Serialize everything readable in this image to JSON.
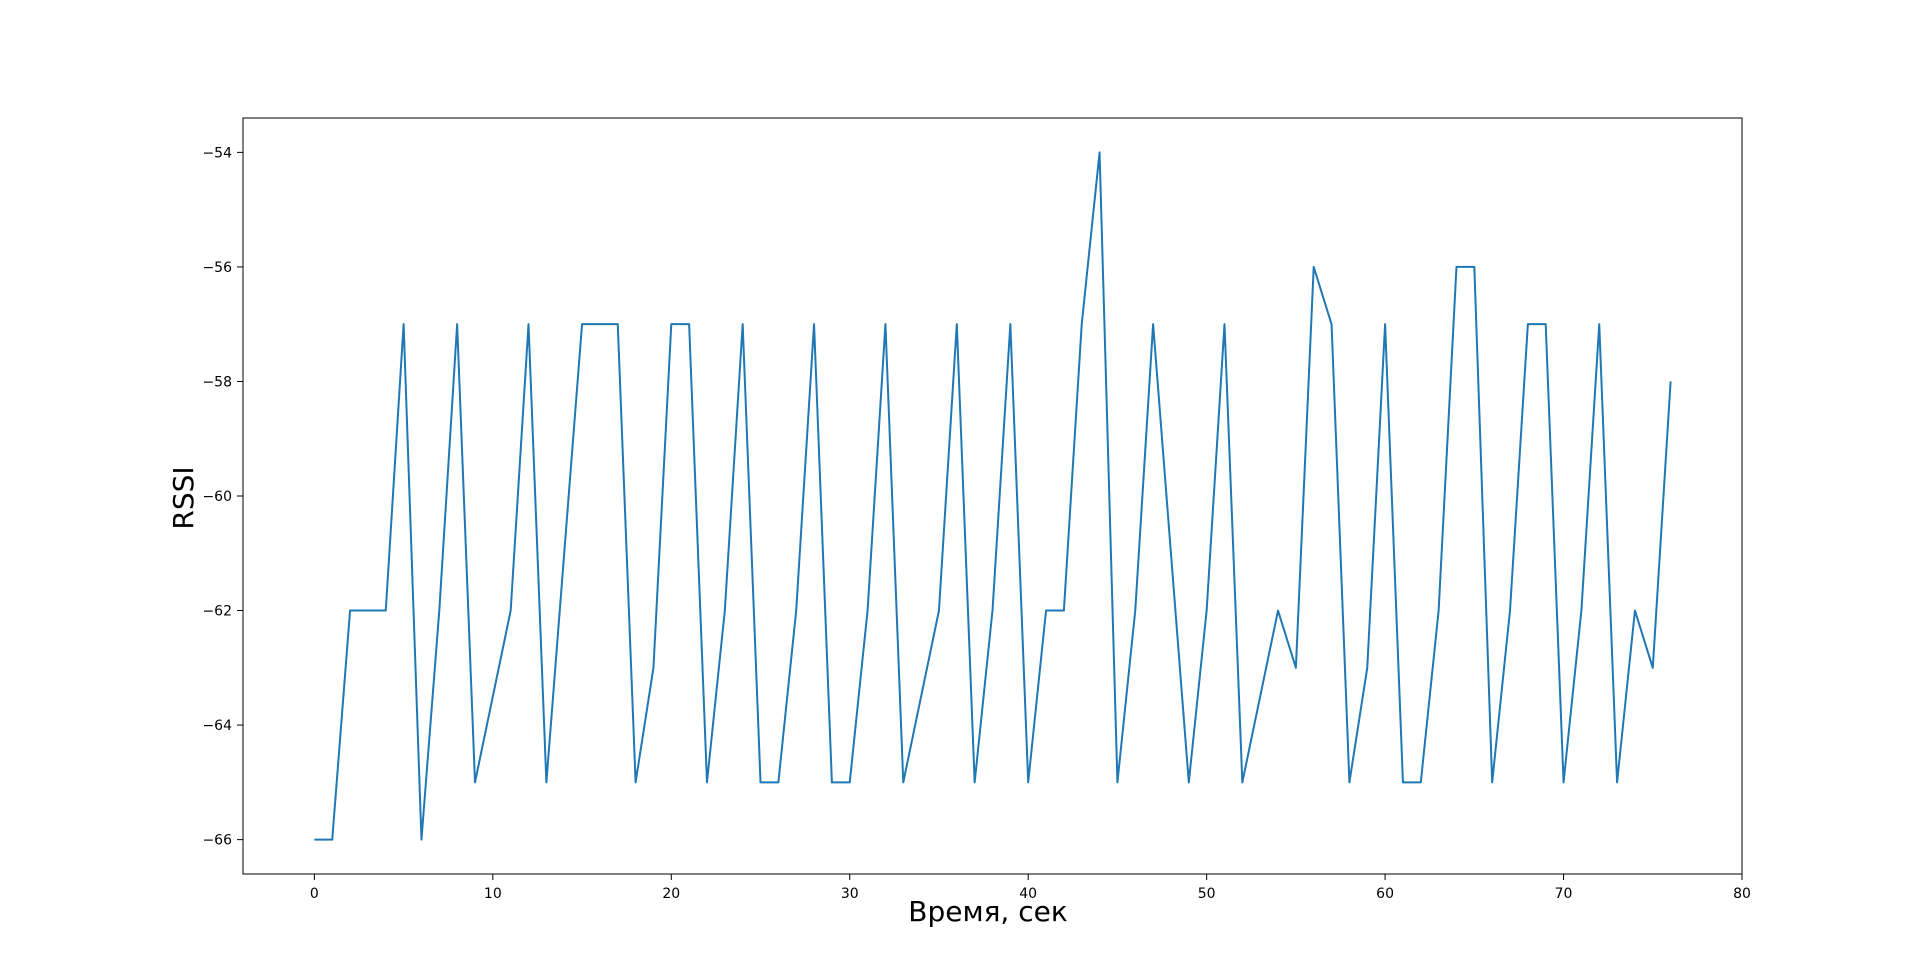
{
  "chart_data": {
    "type": "line",
    "title": "",
    "xlabel": "Время, сек",
    "ylabel": "RSSI",
    "xlim": [
      -4,
      80
    ],
    "ylim": [
      -66.6,
      -53.4
    ],
    "xticks": [
      0,
      10,
      20,
      30,
      40,
      50,
      60,
      70,
      80
    ],
    "yticks": [
      -66,
      -64,
      -62,
      -60,
      -58,
      -56,
      -54
    ],
    "grid": false,
    "legend": "none",
    "series": [
      {
        "color": "#1f77b4",
        "x": [
          0,
          1,
          2,
          3,
          4,
          5,
          6,
          7,
          8,
          9,
          10,
          11,
          12,
          13,
          14,
          15,
          16,
          17,
          18,
          19,
          20,
          21,
          22,
          23,
          24,
          25,
          26,
          27,
          28,
          29,
          30,
          31,
          32,
          33,
          34,
          35,
          36,
          37,
          38,
          39,
          40,
          41,
          42,
          43,
          44,
          45,
          46,
          47,
          48,
          49,
          50,
          51,
          52,
          53,
          54,
          55,
          56,
          57,
          58,
          59,
          60,
          61,
          62,
          63,
          64,
          65,
          66,
          67,
          68,
          69,
          70,
          71,
          72,
          73,
          74,
          75,
          76
        ],
        "y": [
          -66,
          -66,
          -62,
          -62,
          -62,
          -57,
          -66,
          -62,
          -57,
          -65,
          -63.5,
          -62,
          -57,
          -65,
          -61,
          -57,
          -57,
          -57,
          -65,
          -63,
          -57,
          -57,
          -65,
          -62,
          -57,
          -65,
          -65,
          -62,
          -57,
          -65,
          -65,
          -62,
          -57,
          -65,
          -63.5,
          -62,
          -57,
          -65,
          -62,
          -57,
          -65,
          -62,
          -62,
          -57,
          -54,
          -65,
          -62,
          -57,
          -61,
          -65,
          -62,
          -57,
          -65,
          -63.5,
          -62,
          -63,
          -56,
          -57,
          -65,
          -63,
          -57,
          -65,
          -65,
          -62,
          -56,
          -56,
          -65,
          -62,
          -57,
          -57,
          -65,
          -62,
          -57,
          -65,
          -62,
          -63,
          -58
        ]
      }
    ]
  }
}
